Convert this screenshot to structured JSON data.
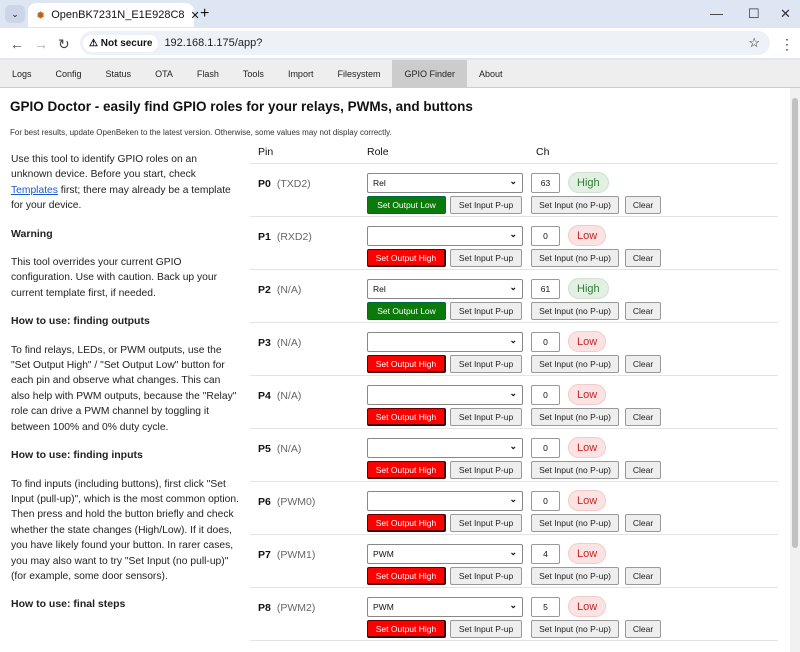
{
  "browser": {
    "tab_title": "OpenBK7231N_E1E928C8",
    "security": "Not secure",
    "url": "192.168.1.175/app?"
  },
  "menu": [
    "Logs",
    "Config",
    "Status",
    "OTA",
    "Flash",
    "Tools",
    "Import",
    "Filesystem",
    "GPIO Finder",
    "About"
  ],
  "active_menu": "GPIO Finder",
  "page": {
    "title": "GPIO Doctor - easily find GPIO roles for your relays, PWMs, and buttons",
    "note": "For best results, update OpenBeken to the latest version. Otherwise, some values may not display correctly."
  },
  "help": {
    "intro_a": "Use this tool to identify GPIO roles on an unknown device. Before you start, check ",
    "intro_link": "Templates",
    "intro_b": " first; there may already be a template for your device.",
    "warning_h": "Warning",
    "warning": "This tool overrides your current GPIO configuration. Use with caution. Back up your current template first, if needed.",
    "outputs_h": "How to use: finding outputs",
    "outputs": "To find relays, LEDs, or PWM outputs, use the \"Set Output High\" / \"Set Output Low\" button for each pin and observe what changes. This can also help with PWM outputs, because the \"Relay\" role can drive a PWM channel by toggling it between 100% and 0% duty cycle.",
    "inputs_h": "How to use: finding inputs",
    "inputs": "To find inputs (including buttons), first click \"Set Input (pull-up)\", which is the most common option. Then press and hold the button briefly and check whether the state changes (High/Low). If it does, you have likely found your button. In rarer cases, you may also want to try \"Set Input (no pull-up)\" (for example, some door sensors).",
    "final_h": "How to use: final steps"
  },
  "table": {
    "headers": {
      "pin": "Pin",
      "role": "Role",
      "ch": "Ch"
    },
    "buttons": {
      "in_pup": "Set Input P-up",
      "in_nopup": "Set Input (no P-up)",
      "clear": "Clear"
    },
    "rows": [
      {
        "pin": "P0",
        "alias": "(TXD2)",
        "role": "Rel",
        "ch": "63",
        "state": "High",
        "out": "Set Output Low"
      },
      {
        "pin": "P1",
        "alias": "(RXD2)",
        "role": "",
        "ch": "0",
        "state": "Low",
        "out": "Set Output High"
      },
      {
        "pin": "P2",
        "alias": "(N/A)",
        "role": "Rel",
        "ch": "61",
        "state": "High",
        "out": "Set Output Low"
      },
      {
        "pin": "P3",
        "alias": "(N/A)",
        "role": "",
        "ch": "0",
        "state": "Low",
        "out": "Set Output High"
      },
      {
        "pin": "P4",
        "alias": "(N/A)",
        "role": "",
        "ch": "0",
        "state": "Low",
        "out": "Set Output High"
      },
      {
        "pin": "P5",
        "alias": "(N/A)",
        "role": "",
        "ch": "0",
        "state": "Low",
        "out": "Set Output High"
      },
      {
        "pin": "P6",
        "alias": "(PWM0)",
        "role": "",
        "ch": "0",
        "state": "Low",
        "out": "Set Output High"
      },
      {
        "pin": "P7",
        "alias": "(PWM1)",
        "role": "PWM",
        "ch": "4",
        "state": "Low",
        "out": "Set Output High"
      },
      {
        "pin": "P8",
        "alias": "(PWM2)",
        "role": "PWM",
        "ch": "5",
        "state": "Low",
        "out": "Set Output High"
      }
    ]
  },
  "colors": {
    "output_low_btn": "#0a7a0a",
    "output_high_btn": "#ff0000",
    "high_pill": "#2e7d32",
    "low_pill": "#c62828"
  }
}
